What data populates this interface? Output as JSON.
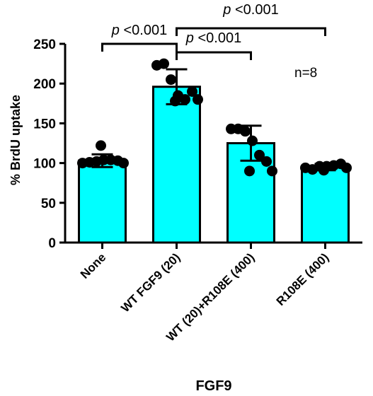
{
  "chart_data": {
    "type": "bar",
    "title": "",
    "xlabel": "FGF9",
    "ylabel": "% BrdU uptake",
    "ylim": [
      0,
      250
    ],
    "yticks": [
      0,
      50,
      100,
      150,
      200,
      250
    ],
    "grid": false,
    "categories": [
      "None",
      "WT FGF9 (20)",
      "WT (20)+R108E (400)",
      "R108E (400)"
    ],
    "values": [
      103,
      196,
      125,
      95
    ],
    "error": [
      8,
      22,
      22,
      4
    ],
    "points": [
      [
        100,
        101,
        102,
        104,
        104,
        103,
        100,
        122
      ],
      [
        223,
        225,
        205,
        185,
        180,
        190,
        180,
        178
      ],
      [
        143,
        143,
        140,
        128,
        110,
        102,
        90,
        90
      ],
      [
        94,
        92,
        96,
        96,
        97,
        99,
        94,
        91
      ]
    ],
    "bar_color": "#00ffff",
    "point_color": "#000000",
    "annotations": {
      "n_label": "n=8",
      "p_italic": "p",
      "p_value": "<0.001",
      "comparisons": [
        {
          "from": 0,
          "to": 1
        },
        {
          "from": 1,
          "to": 2
        },
        {
          "from": 1,
          "to": 3
        }
      ]
    }
  }
}
